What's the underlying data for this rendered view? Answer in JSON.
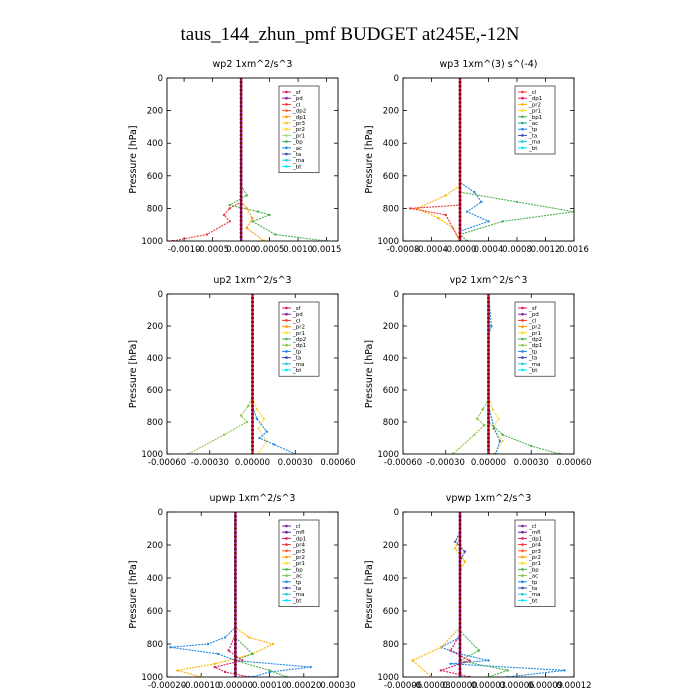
{
  "figure": {
    "title": "taus_144_zhun_pmf  BUDGET at245E,-12N"
  },
  "chart_data": [
    {
      "type": "line",
      "title": "wp2   1xm^2/s^3",
      "ylabel": "Pressure [hPa]",
      "ylim": [
        1000,
        0
      ],
      "xlim": [
        -0.0013,
        0.0017
      ],
      "yticks": [
        0,
        200,
        400,
        600,
        800,
        1000
      ],
      "xticks": [
        "-0.0010",
        "-0.0005",
        "0.0000",
        "0.0005",
        "0.0010",
        "0.0015"
      ],
      "xtick_values": [
        -0.001,
        -0.0005,
        0.0,
        0.0005,
        0.001,
        0.0015
      ],
      "legend": [
        "_sf",
        "_pd",
        "_cl",
        "_dp2",
        "_dp1",
        "_pr3",
        "_pr2",
        "_pr1",
        "_bp",
        "_ac",
        "_ta",
        "_ma",
        "_bt"
      ],
      "legend_colors": [
        "#d81b60",
        "#7b1fa2",
        "#e53935",
        "#ff5722",
        "#ff9800",
        "#fbc02d",
        "#fdd835",
        "#aed581",
        "#4caf50",
        "#1e88e5",
        "#3949ab",
        "#26c6da",
        "#00e5ff"
      ],
      "series": [
        {
          "name": "_bp",
          "color": "#4caf50",
          "x": [
            0,
            0.0,
            0.0,
            0.0001,
            -0.0002,
            0.0003,
            0.0005,
            0.0002,
            0.0006,
            0.0015
          ],
          "y": [
            0,
            600,
            660,
            720,
            780,
            820,
            840,
            880,
            960,
            1000
          ]
        },
        {
          "name": "_dp2",
          "color": "#e53935",
          "x": [
            0,
            0.0,
            0.0,
            -0.0002,
            -0.0003,
            -0.0002,
            -0.0006,
            -0.0012
          ],
          "y": [
            0,
            700,
            760,
            800,
            840,
            880,
            960,
            1000
          ]
        },
        {
          "name": "_pr1",
          "color": "#ff9800",
          "x": [
            0,
            0.0,
            0.0,
            0.0001,
            0.0002,
            0.0001,
            0.0004
          ],
          "y": [
            0,
            700,
            760,
            800,
            860,
            920,
            1000
          ]
        },
        {
          "name": "_sf",
          "color": "#7b1fa2",
          "x": [
            0,
            0,
            0,
            0,
            0,
            0
          ],
          "y": [
            0,
            200,
            400,
            600,
            800,
            1000
          ]
        }
      ]
    },
    {
      "type": "line",
      "title": "wp3   1xm^(3) s^(-4)",
      "ylabel": "Pressure [hPa]",
      "ylim": [
        1000,
        0
      ],
      "xlim": [
        -0.0008,
        0.0016
      ],
      "yticks": [
        0,
        200,
        400,
        600,
        800,
        1000
      ],
      "xticks": [
        "-0.0008",
        "-0.0004",
        "-0.0000",
        "0.0004",
        "0.0008",
        "0.0012",
        "0.0016"
      ],
      "xtick_values": [
        -0.0008,
        -0.0004,
        0.0,
        0.0004,
        0.0008,
        0.0012,
        0.0016
      ],
      "legend": [
        "_cl",
        "_dp1",
        "_pr2",
        "_pr1",
        "_bp1",
        "_ac",
        "_tp",
        "_ta",
        "_ma",
        "_bt"
      ],
      "legend_colors": [
        "#e53935",
        "#d81b60",
        "#ffb300",
        "#fdd835",
        "#4caf50",
        "#26a69a",
        "#1e88e5",
        "#3949ab",
        "#26c6da",
        "#00e5ff"
      ],
      "series": [
        {
          "name": "_bp1",
          "color": "#4caf50",
          "x": [
            0,
            0.0,
            0.0,
            0.0008,
            0.0016,
            0.0006,
            0.0,
            0.0001
          ],
          "y": [
            0,
            640,
            700,
            760,
            820,
            880,
            960,
            1000
          ]
        },
        {
          "name": "_pr2",
          "color": "#ffb300",
          "x": [
            0,
            0.0,
            -0.0002,
            -0.0006,
            -0.0003,
            -0.0001,
            0.0
          ],
          "y": [
            0,
            660,
            720,
            800,
            860,
            920,
            1000
          ]
        },
        {
          "name": "_tp",
          "color": "#1e88e5",
          "x": [
            0,
            0.0,
            0.0002,
            0.0003,
            0.0001,
            0.0004,
            0.0,
            0.0
          ],
          "y": [
            0,
            640,
            700,
            760,
            820,
            880,
            940,
            1000
          ]
        },
        {
          "name": "_cl",
          "color": "#e53935",
          "x": [
            0,
            0.0,
            0.0,
            -0.0007,
            -0.0002,
            0.0
          ],
          "y": [
            0,
            700,
            780,
            800,
            840,
            1000
          ]
        },
        {
          "name": "_dp1",
          "color": "#d81b60",
          "x": [
            0,
            0,
            0,
            0,
            0,
            0
          ],
          "y": [
            0,
            200,
            400,
            600,
            800,
            1000
          ]
        }
      ]
    },
    {
      "type": "line",
      "title": "up2   1xm^2/s^3",
      "ylabel": "Pressure [hPa]",
      "ylim": [
        1000,
        0
      ],
      "xlim": [
        -0.0006,
        0.0006
      ],
      "yticks": [
        0,
        200,
        400,
        600,
        800,
        1000
      ],
      "xticks": [
        "-0.00060",
        "-0.00030",
        "0.00000",
        "0.00030",
        "0.00060"
      ],
      "xtick_values": [
        -0.0006,
        -0.0003,
        0.0,
        0.0003,
        0.0006
      ],
      "legend": [
        "_sf",
        "_pd",
        "_cl",
        "_pr2",
        "_pr1",
        "_dp2",
        "_dp1",
        "_tp",
        "_ta",
        "_ma",
        "_bt"
      ],
      "legend_colors": [
        "#d81b60",
        "#7b1fa2",
        "#e53935",
        "#ff9800",
        "#fdd835",
        "#4caf50",
        "#8bc34a",
        "#1e88e5",
        "#3949ab",
        "#26c6da",
        "#00e5ff"
      ],
      "series": [
        {
          "name": "_dp1",
          "color": "#8bc34a",
          "x": [
            0,
            0.0,
            0.0,
            -3e-05,
            -8e-05,
            -4e-05,
            -0.0002,
            -0.00045
          ],
          "y": [
            0,
            600,
            640,
            700,
            760,
            800,
            880,
            1000
          ]
        },
        {
          "name": "_pr1",
          "color": "#fdd835",
          "x": [
            0,
            0.0,
            3e-05,
            8e-05,
            4e-05,
            0.0001,
            4e-05
          ],
          "y": [
            0,
            640,
            720,
            780,
            840,
            920,
            1000
          ]
        },
        {
          "name": "_tp",
          "color": "#1e88e5",
          "x": [
            0,
            0.0,
            3e-05,
            0.0001,
            5e-05,
            0.00015,
            0.0003
          ],
          "y": [
            0,
            700,
            780,
            860,
            900,
            940,
            1000
          ]
        },
        {
          "name": "_sf",
          "color": "#d81b60",
          "x": [
            0,
            0,
            0,
            0,
            0,
            0
          ],
          "y": [
            0,
            200,
            400,
            600,
            800,
            1000
          ]
        }
      ]
    },
    {
      "type": "line",
      "title": "vp2   1xm^2/s^3",
      "ylabel": "Pressure [hPa]",
      "ylim": [
        1000,
        0
      ],
      "xlim": [
        -0.0006,
        0.0006
      ],
      "yticks": [
        0,
        200,
        400,
        600,
        800,
        1000
      ],
      "xticks": [
        "-0.00060",
        "-0.00030",
        "0.00000",
        "0.00030",
        "0.00060"
      ],
      "xtick_values": [
        -0.0006,
        -0.0003,
        0.0,
        0.0003,
        0.0006
      ],
      "legend": [
        "_sf",
        "_pd",
        "_cl",
        "_pr2",
        "_pr1",
        "_dp2",
        "_dp1",
        "_tp",
        "_ta",
        "_ma",
        "_bt"
      ],
      "legend_colors": [
        "#d81b60",
        "#7b1fa2",
        "#e53935",
        "#ff9800",
        "#fdd835",
        "#4caf50",
        "#8bc34a",
        "#1e88e5",
        "#3949ab",
        "#26c6da",
        "#00e5ff"
      ],
      "series": [
        {
          "name": "_dp1",
          "color": "#8bc34a",
          "x": [
            0,
            0.0,
            0.0,
            -4e-05,
            -8e-05,
            -3e-05,
            -0.0001,
            -0.00025
          ],
          "y": [
            0,
            600,
            660,
            720,
            780,
            820,
            880,
            1000
          ]
        },
        {
          "name": "_pr1",
          "color": "#fdd835",
          "x": [
            0,
            0.0,
            3e-05,
            7e-05,
            3e-05,
            0.0001,
            4e-05
          ],
          "y": [
            0,
            640,
            720,
            780,
            840,
            920,
            1000
          ]
        },
        {
          "name": "_tp",
          "color": "#1e88e5",
          "x": [
            0,
            2e-05,
            0.0,
            0.0,
            4e-05,
            8e-05,
            5e-05
          ],
          "y": [
            0,
            200,
            260,
            700,
            840,
            920,
            1000
          ]
        },
        {
          "name": "_dp2",
          "color": "#4caf50",
          "x": [
            0,
            0.0,
            0.0,
            0.0001,
            0.0003,
            0.0005
          ],
          "y": [
            0,
            700,
            800,
            880,
            950,
            1000
          ]
        },
        {
          "name": "_sf",
          "color": "#d81b60",
          "x": [
            0,
            0,
            0,
            0,
            0,
            0
          ],
          "y": [
            0,
            200,
            400,
            600,
            800,
            1000
          ]
        }
      ]
    },
    {
      "type": "line",
      "title": "upwp   1xm^2/s^3",
      "ylabel": "Pressure [hPa]",
      "ylim": [
        1000,
        0
      ],
      "xlim": [
        -0.0002,
        0.0003
      ],
      "yticks": [
        0,
        200,
        400,
        600,
        800,
        1000
      ],
      "xticks": [
        "-0.00020",
        "-0.00010",
        "0.00000",
        "0.00010",
        "0.00020",
        "0.00030"
      ],
      "xtick_values": [
        -0.0002,
        -0.0001,
        0.0,
        0.0001,
        0.0002,
        0.0003
      ],
      "legend": [
        "_cl",
        "_mfl",
        "_dp1",
        "_pr4",
        "_pr3",
        "_pr2",
        "_pr1",
        "_bp",
        "_ac",
        "_tp",
        "_ta",
        "_ma",
        "_bt"
      ],
      "legend_colors": [
        "#7b1fa2",
        "#6a1b9a",
        "#d81b60",
        "#e53935",
        "#ff5722",
        "#ff9800",
        "#fdd835",
        "#4caf50",
        "#8bc34a",
        "#1e88e5",
        "#3949ab",
        "#26c6da",
        "#00e5ff"
      ],
      "series": [
        {
          "name": "_ac",
          "color": "#1e88e5",
          "x": [
            0,
            0.0,
            -3e-05,
            -8e-05,
            -0.00019,
            -5e-05,
            0.0,
            0.00022,
            0.0001,
            5e-05
          ],
          "y": [
            0,
            700,
            760,
            800,
            820,
            860,
            900,
            940,
            970,
            1000
          ]
        },
        {
          "name": "_pr2",
          "color": "#ffb300",
          "x": [
            0,
            0.0,
            4e-05,
            0.00011,
            5e-05,
            -6e-05,
            -0.00017,
            -0.0001
          ],
          "y": [
            0,
            700,
            760,
            800,
            860,
            920,
            960,
            1000
          ]
        },
        {
          "name": "_bp",
          "color": "#4caf50",
          "x": [
            0,
            0.0,
            5e-05,
            0.0,
            0.0001,
            0.00015
          ],
          "y": [
            0,
            760,
            860,
            900,
            960,
            1000
          ]
        },
        {
          "name": "_dp1",
          "color": "#d81b60",
          "x": [
            0,
            0.0,
            -2e-05,
            2e-05,
            -6e-05,
            -3e-05,
            4e-05
          ],
          "y": [
            0,
            740,
            840,
            900,
            940,
            970,
            1000
          ]
        },
        {
          "name": "_cl",
          "color": "#7b1fa2",
          "x": [
            0,
            0,
            0,
            0,
            0,
            0
          ],
          "y": [
            0,
            200,
            400,
            600,
            800,
            1000
          ]
        }
      ]
    },
    {
      "type": "line",
      "title": "vpwp   1xm^2/s^3",
      "ylabel": "Pressure [hPa]",
      "ylim": [
        1000,
        0
      ],
      "xlim": [
        -6e-05,
        0.00012
      ],
      "yticks": [
        0,
        200,
        400,
        600,
        800,
        1000
      ],
      "xticks": [
        "-0.00006",
        "-0.00003",
        "0.00000",
        "0.00003",
        "0.00006",
        "0.00009",
        "0.00012"
      ],
      "xtick_values": [
        -6e-05,
        -3e-05,
        0.0,
        3e-05,
        6e-05,
        9e-05,
        0.00012
      ],
      "legend": [
        "_cl",
        "_mfl",
        "_dp1",
        "_pr4",
        "_pr3",
        "_pr2",
        "_pr1",
        "_bp",
        "_ac",
        "_tp",
        "_ta",
        "_ma",
        "_bt"
      ],
      "legend_colors": [
        "#7b1fa2",
        "#6a1b9a",
        "#d81b60",
        "#e53935",
        "#ff5722",
        "#ff9800",
        "#fdd835",
        "#4caf50",
        "#8bc34a",
        "#1e88e5",
        "#3949ab",
        "#26c6da",
        "#00e5ff"
      ],
      "series": [
        {
          "name": "_ac",
          "color": "#1e88e5",
          "x": [
            0,
            0.0,
            0.0,
            -2e-05,
            0.0,
            3e-05,
            -1e-05,
            0.00011,
            5e-05
          ],
          "y": [
            0,
            700,
            760,
            820,
            860,
            900,
            920,
            960,
            1000
          ]
        },
        {
          "name": "_pr2",
          "color": "#ffb300",
          "x": [
            0,
            0.0,
            -5e-06,
            5e-06,
            0.0,
            0.0,
            -2e-05,
            -5e-05,
            -3e-05
          ],
          "y": [
            0,
            150,
            220,
            300,
            360,
            700,
            820,
            900,
            1000
          ]
        },
        {
          "name": "_tp",
          "color": "#3949ab",
          "x": [
            0,
            0.0,
            -5e-06,
            5e-06,
            0.0,
            0.0
          ],
          "y": [
            0,
            120,
            180,
            240,
            300,
            1000
          ]
        },
        {
          "name": "_bp",
          "color": "#4caf50",
          "x": [
            0,
            0.0,
            2e-05,
            0.0,
            5e-05,
            3e-05
          ],
          "y": [
            0,
            720,
            840,
            900,
            960,
            1000
          ]
        },
        {
          "name": "_dp1",
          "color": "#d81b60",
          "x": [
            0,
            0.0,
            -1e-05,
            1e-05,
            -2e-05,
            1e-05
          ],
          "y": [
            0,
            740,
            840,
            900,
            960,
            1000
          ]
        },
        {
          "name": "_cl",
          "color": "#7b1fa2",
          "x": [
            0,
            0,
            0,
            0,
            0,
            0
          ],
          "y": [
            0,
            200,
            400,
            600,
            800,
            1000
          ]
        }
      ]
    }
  ]
}
